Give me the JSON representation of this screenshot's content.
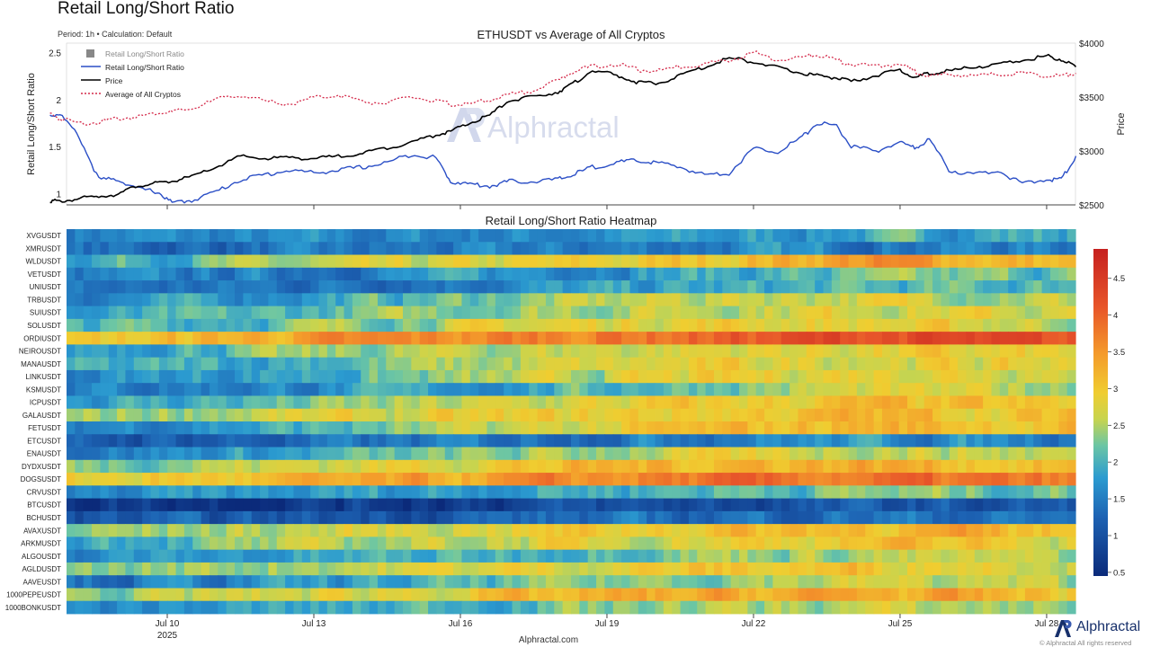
{
  "header": {
    "title": "Retail Long/Short Ratio",
    "subtitle": "Period: 1h • Calculation: Default"
  },
  "footer": {
    "site": "Alphractal.com",
    "brand": "Alphractal",
    "rights": "© Alphractal All rights reserved"
  },
  "watermark": "Alphractal",
  "colors": {
    "ratio_line": "#2a4ec6",
    "price_line": "#000000",
    "average_line": "#d42a4a",
    "legend_square": "#888888",
    "brand": "#17306b"
  },
  "chart_data": [
    {
      "type": "line",
      "title": "ETHUSDT vs Average of All Cryptos",
      "ylabel": "Retail Long/Short Ratio",
      "ylabel_right": "Price",
      "ylim": [
        0.88,
        2.6
      ],
      "ylim_right": [
        2500,
        4000
      ],
      "yticks": [
        "2.5",
        "2",
        "1.5",
        "1"
      ],
      "yticks_right": [
        "$4000",
        "$3500",
        "$3000",
        "$2500"
      ],
      "legend": [
        "Retail Long/Short Ratio",
        "Retail Long/Short Ratio",
        "Price",
        "Average of All Cryptos"
      ],
      "legend_placement": "top-left",
      "grid": false,
      "x": [
        7.6,
        7.8,
        8.2,
        8.6,
        9.0,
        9.4,
        9.8,
        10.1,
        10.5,
        11.0,
        11.5,
        12.0,
        12.5,
        13.0,
        13.5,
        14.0,
        14.5,
        15.0,
        15.5,
        15.8,
        16.2,
        16.6,
        17.0,
        17.5,
        18.0,
        18.3,
        18.7,
        19.2,
        19.6,
        20.0,
        20.5,
        21.0,
        21.5,
        22.0,
        22.5,
        23.0,
        23.3,
        23.7,
        24.0,
        24.5,
        25.0,
        25.3,
        25.6,
        26.0,
        26.5,
        27.0,
        27.5,
        28.0,
        28.3,
        28.6
      ],
      "series": [
        {
          "name": "Retail Long/Short Ratio",
          "axis": "left",
          "values": [
            1.83,
            1.85,
            1.6,
            1.15,
            1.15,
            1.05,
            1.02,
            0.9,
            0.93,
            1.02,
            1.15,
            1.2,
            1.25,
            1.22,
            1.25,
            1.28,
            1.33,
            1.42,
            1.38,
            1.13,
            1.1,
            1.08,
            1.13,
            1.13,
            1.15,
            1.2,
            1.28,
            1.33,
            1.35,
            1.33,
            1.28,
            1.2,
            1.22,
            1.48,
            1.45,
            1.6,
            1.75,
            1.72,
            1.5,
            1.45,
            1.55,
            1.48,
            1.58,
            1.25,
            1.2,
            1.25,
            1.1,
            1.15,
            1.15,
            1.4
          ]
        },
        {
          "name": "Price",
          "axis": "right",
          "values": [
            2540,
            2530,
            2560,
            2580,
            2600,
            2680,
            2700,
            2720,
            2760,
            2850,
            2950,
            2930,
            2940,
            2930,
            2950,
            2980,
            3030,
            3080,
            3150,
            3180,
            3260,
            3330,
            3470,
            3500,
            3550,
            3620,
            3750,
            3700,
            3640,
            3620,
            3700,
            3780,
            3860,
            3830,
            3770,
            3720,
            3700,
            3680,
            3640,
            3700,
            3750,
            3680,
            3720,
            3740,
            3780,
            3800,
            3840,
            3880,
            3850,
            3780
          ]
        },
        {
          "name": "Average of All Cryptos",
          "axis": "left",
          "values": [
            1.85,
            1.8,
            1.75,
            1.76,
            1.8,
            1.82,
            1.86,
            1.87,
            1.9,
            2.0,
            2.05,
            1.98,
            1.95,
            2.02,
            2.05,
            1.98,
            1.96,
            2.03,
            1.98,
            1.95,
            1.95,
            2.0,
            2.05,
            2.1,
            2.2,
            2.3,
            2.35,
            2.38,
            2.32,
            2.3,
            2.35,
            2.38,
            2.42,
            2.5,
            2.42,
            2.45,
            2.48,
            2.42,
            2.38,
            2.35,
            2.38,
            2.3,
            2.25,
            2.27,
            2.25,
            2.27,
            2.28,
            2.25,
            2.25,
            2.28
          ]
        }
      ]
    },
    {
      "type": "heatmap",
      "title": "Retail Long/Short Ratio Heatmap",
      "xticks": [
        "Jul 10",
        "Jul 13",
        "Jul 16",
        "Jul 19",
        "Jul 22",
        "Jul 25",
        "Jul 28"
      ],
      "xtick_year": "2025",
      "colorbar_ticks": [
        "4.5",
        "4",
        "3.5",
        "3",
        "2.5",
        "2",
        "1.5",
        "1",
        "0.5"
      ],
      "colorbar_range": [
        0.45,
        4.9
      ],
      "x_range": [
        7.6,
        28.6
      ],
      "cols": 120,
      "rows": [
        "XVGUSDT",
        "XMRUSDT",
        "WLDUSDT",
        "VETUSDT",
        "UNIUSDT",
        "TRBUSDT",
        "SUIUSDT",
        "SOLUSDT",
        "ORDIUSDT",
        "NEIROUSDT",
        "MANAUSDT",
        "LINKUSDT",
        "KSMUSDT",
        "ICPUSDT",
        "GALAUSDT",
        "FETUSDT",
        "ETCUSDT",
        "ENAUSDT",
        "DYDXUSDT",
        "DOGSUSDT",
        "CRVUSDT",
        "BTCUSDT",
        "BCHUSDT",
        "AVAXUSDT",
        "ARKMUSDT",
        "ALGOUSDT",
        "AGLDUSDT",
        "AAVEUSDT",
        "1000PEPEUSDT",
        "1000BONKUSDT"
      ],
      "row_profiles": [
        [
          1.6,
          1.5,
          1.6,
          1.7,
          1.9,
          2.0
        ],
        [
          1.3,
          1.3,
          1.4,
          1.5,
          1.6,
          1.5
        ],
        [
          2.0,
          2.3,
          2.6,
          2.9,
          3.5,
          3.0
        ],
        [
          1.4,
          1.5,
          1.7,
          1.9,
          2.1,
          2.2
        ],
        [
          1.3,
          1.4,
          1.6,
          1.8,
          2.0,
          2.1
        ],
        [
          1.6,
          1.8,
          2.2,
          2.6,
          2.7,
          2.5
        ],
        [
          1.7,
          2.0,
          2.4,
          2.6,
          2.8,
          2.6
        ],
        [
          2.0,
          2.2,
          2.6,
          2.9,
          2.8,
          2.6
        ],
        [
          2.7,
          3.3,
          3.6,
          3.9,
          4.3,
          4.0
        ],
        [
          1.9,
          2.2,
          2.5,
          2.7,
          2.8,
          2.7
        ],
        [
          1.8,
          2.0,
          2.4,
          2.7,
          2.8,
          2.7
        ],
        [
          1.6,
          1.9,
          2.3,
          2.7,
          2.9,
          2.8
        ],
        [
          1.5,
          1.6,
          1.8,
          2.2,
          2.6,
          2.5
        ],
        [
          1.8,
          2.1,
          2.5,
          2.8,
          3.0,
          2.8
        ],
        [
          2.3,
          2.6,
          2.7,
          2.9,
          3.1,
          2.9
        ],
        [
          1.6,
          1.9,
          2.4,
          2.9,
          3.2,
          3.0
        ],
        [
          1.1,
          1.2,
          1.4,
          1.6,
          1.7,
          1.6
        ],
        [
          1.5,
          1.8,
          2.2,
          2.6,
          2.7,
          2.5
        ],
        [
          2.3,
          2.6,
          2.9,
          3.2,
          3.3,
          3.0
        ],
        [
          2.8,
          3.0,
          3.3,
          3.7,
          3.8,
          3.6
        ],
        [
          1.5,
          1.7,
          1.9,
          2.1,
          2.3,
          2.2
        ],
        [
          0.7,
          0.7,
          0.8,
          0.9,
          1.0,
          1.0
        ],
        [
          1.0,
          1.0,
          1.2,
          1.3,
          1.4,
          1.3
        ],
        [
          2.3,
          2.5,
          2.8,
          3.0,
          3.2,
          3.0
        ],
        [
          2.0,
          2.3,
          2.6,
          2.8,
          3.0,
          2.8
        ],
        [
          1.6,
          1.8,
          2.0,
          2.4,
          2.5,
          2.4
        ],
        [
          2.2,
          2.5,
          2.7,
          2.9,
          3.0,
          2.8
        ],
        [
          1.4,
          1.6,
          2.0,
          2.4,
          2.6,
          2.4
        ],
        [
          2.3,
          2.6,
          2.9,
          3.2,
          3.3,
          3.0
        ],
        [
          1.6,
          1.8,
          2.1,
          2.4,
          2.5,
          2.4
        ]
      ]
    }
  ]
}
